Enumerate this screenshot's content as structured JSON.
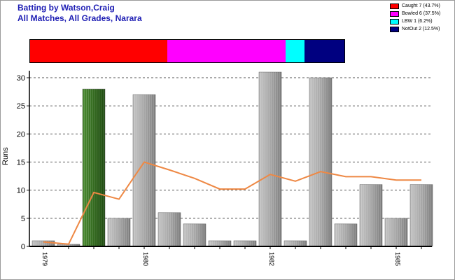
{
  "title_line1": "Batting by Watson,Craig",
  "title_line2": "All Matches, All Grades, Narara",
  "legend": [
    {
      "label": "Caught 7 (43.7%)",
      "color": "#ff0000",
      "fraction": 0.437
    },
    {
      "label": "Bowled 6 (37.5%)",
      "color": "#ff00ff",
      "fraction": 0.375
    },
    {
      "label": "LBW 1 (6.2%)",
      "color": "#00ffff",
      "fraction": 0.062
    },
    {
      "label": "NotOut 2 (12.5%)",
      "color": "#000080",
      "fraction": 0.125
    }
  ],
  "chart_data": {
    "type": "bar",
    "ylabel": "Runs",
    "ylim": [
      0,
      31
    ],
    "yticks": [
      0,
      5,
      10,
      15,
      20,
      25,
      30
    ],
    "grid": true,
    "values": [
      1,
      0,
      28,
      5,
      27,
      6,
      4,
      1,
      1,
      31,
      1,
      30,
      4,
      11,
      5,
      11
    ],
    "not_out_innings": [
      2
    ],
    "average_line": [
      0.8,
      0.4,
      9.6,
      8.4,
      15,
      13.6,
      12.1,
      10.2,
      10.2,
      12.8,
      11.6,
      13.3,
      12.4,
      12.4,
      11.8,
      11.8
    ],
    "bar_color": "#a0a0a0",
    "not_out_color": "#2d6a1a",
    "line_color": "#ee8844",
    "xtick_labels": [
      {
        "index": 0,
        "label": "1979"
      },
      {
        "index": 4,
        "label": "1980"
      },
      {
        "index": 9,
        "label": "1982"
      },
      {
        "index": 14,
        "label": "1985"
      }
    ]
  }
}
